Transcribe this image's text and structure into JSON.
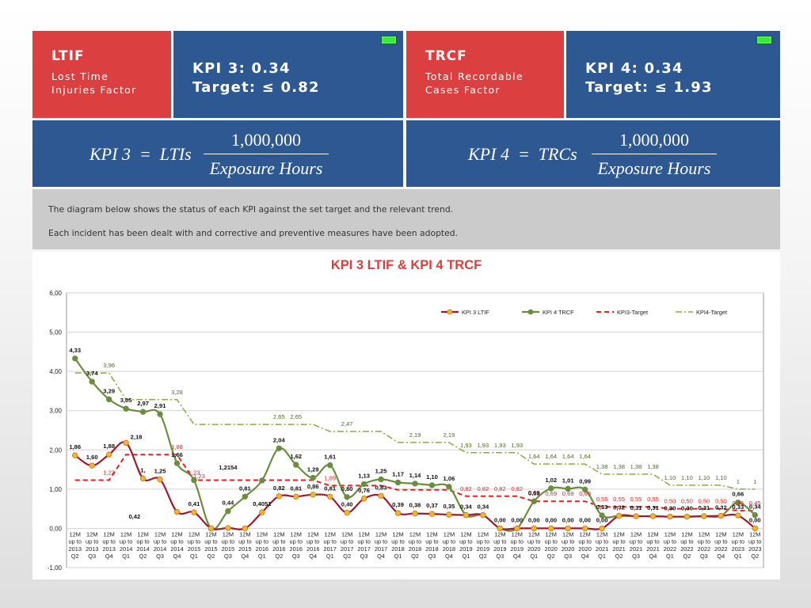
{
  "header": {
    "left": {
      "code": "LTIF",
      "name": "Lost Time\nInjuries Factor",
      "kpi_line": "KPI 3: 0.34",
      "target_line": "Target: ≤ 0.82",
      "status_color": "#33ee33"
    },
    "right": {
      "code": "TRCF",
      "name": "Total Recordable\nCases Factor",
      "kpi_line": "KPI 4: 0.34",
      "target_line": "Target: ≤ 1.93",
      "status_color": "#33ee33"
    }
  },
  "formulas": {
    "left": {
      "lhs": "KPI 3  =  LTIs",
      "numerator": "1,000,000",
      "denominator": "Exposure Hours"
    },
    "right": {
      "lhs": "KPI 4  =  TRCs",
      "numerator": "1,000,000",
      "denominator": "Exposure Hours"
    }
  },
  "description": {
    "line1": "The diagram below shows the status of each KPI against the set target and the relevant trend.",
    "line2": "Each incident has been dealt with and corrective and preventive measures have been adopted."
  },
  "colors": {
    "red": "#dc3f3f",
    "blue": "#2d5891",
    "gray": "#cbcbcb",
    "ltif_line": "#a3192b",
    "ltif_marker": "#f5b335",
    "trcf_line": "#6b8e3e",
    "target3": "#ee1c1c",
    "target4": "#8aac3c"
  },
  "chart_data": {
    "type": "line",
    "title": "KPI 3 LTIF & KPI 4 TRCF",
    "ylim": [
      -1,
      6
    ],
    "yticks": [
      "-1,00",
      "0,00",
      "1,00",
      "2,00",
      "3,00",
      "4,00",
      "5,00",
      "6,00"
    ],
    "grid": true,
    "legend_position": "top-right",
    "categories": [
      "12M up to 2013 Q2",
      "12M up to 2013 Q3",
      "12M up to 2013 Q4",
      "12M up to 2014 Q1",
      "12M up to 2014 Q2",
      "12M up to 2014 Q3",
      "12M up to 2014 Q4",
      "12M up to 2015 Q1",
      "12M up to 2015 Q2",
      "12M up to 2015 Q3",
      "12M up to 2015 Q4",
      "12M up to 2016 Q1",
      "12M up to 2016 Q2",
      "12M up to 2016 Q3",
      "12M up to 2016 Q4",
      "12M up to 2017 Q1",
      "12M up to 2017 Q2",
      "12M up to 2017 Q3",
      "12M up to 2017 Q4",
      "12M up to 2018 Q1",
      "12M up to 2018 Q2",
      "12M up to 2018 Q3",
      "12M up to 2018 Q4",
      "12M up to 2019 Q1",
      "12M up to 2019 Q2",
      "12M up to 2019 Q3",
      "12M up to 2019 Q4",
      "12M up to 2020 Q1",
      "12M up to 2020 Q2",
      "12M up to 2020 Q3",
      "12M up to 2020 Q4",
      "12M up to 2021 Q1",
      "12M up to 2021 Q2",
      "12M up to 2021 Q3",
      "12M up to 2021 Q4",
      "12M up to 2022 Q1",
      "12M up to 2022 Q2",
      "12M up to 2022 Q3",
      "12M up to 2022 Q4",
      "12M up to 2023 Q1",
      "12M up to 2023 Q2"
    ],
    "series": [
      {
        "name": "KPI 3 LTIF",
        "values": [
          1.86,
          1.6,
          1.88,
          2.18,
          1.27,
          1.25,
          0.42,
          0.41,
          0.0,
          0.01,
          0.0,
          0.41,
          0.82,
          0.81,
          0.86,
          0.81,
          0.4,
          0.76,
          0.83,
          0.39,
          0.38,
          0.37,
          0.35,
          0.34,
          0.34,
          0.0,
          0.0,
          0.0,
          0.0,
          0.0,
          0.0,
          0.0,
          0.32,
          0.31,
          0.31,
          0.3,
          0.3,
          0.31,
          0.32,
          0.33,
          0.0
        ],
        "labels": [
          "1,86",
          "1,60",
          "1,88",
          "",
          "1,",
          "1,25",
          "",
          "0,41",
          "",
          "",
          "",
          "0,4051",
          "0,82",
          "0,81",
          "0,86",
          "0,81",
          "0,40",
          "0,76",
          "0,83",
          "0,39",
          "0,38",
          "0,37",
          "0,35",
          "0,34",
          "0,34",
          "0,00",
          "0,00",
          "0,00",
          "0,00",
          "0,00",
          "0,00",
          "0,00",
          "0,32",
          "0,31",
          "0,31",
          "0,30",
          "0,30",
          "0,31",
          "0,32",
          "0,33",
          "0,00"
        ]
      },
      {
        "name": "KPI 4 TRCF",
        "values": [
          4.33,
          3.74,
          3.29,
          3.05,
          2.97,
          2.91,
          1.66,
          1.23,
          0.0,
          0.44,
          0.81,
          1.22,
          2.04,
          1.62,
          1.29,
          1.61,
          0.8,
          1.13,
          1.25,
          1.17,
          1.14,
          1.1,
          1.06,
          0.34,
          0.34,
          0.0,
          0.0,
          0.69,
          1.02,
          1.01,
          0.99,
          0.33,
          0.32,
          0.31,
          0.31,
          0.3,
          0.3,
          0.31,
          0.32,
          0.66,
          0.34
        ],
        "labels": [
          "4,33",
          "3,74",
          "3,29",
          "3,05",
          "2,97",
          "2,91",
          "1,66",
          "",
          "",
          "0,44",
          "0,81",
          "",
          "2,04",
          "1,62",
          "1,29",
          "1,61",
          "0,80",
          "1,13",
          "1,25",
          "1,17",
          "1,14",
          "1,10",
          "1,06",
          "",
          "",
          "",
          "",
          "0,69",
          "1,02",
          "1,01",
          "0,99",
          "0,33",
          "",
          "",
          "",
          "",
          "",
          "",
          "",
          "0,66",
          "0,34"
        ]
      },
      {
        "name": "KPI3-Target",
        "values": [
          1.23,
          1.23,
          1.23,
          1.88,
          1.88,
          1.88,
          1.88,
          1.23,
          1.23,
          1.23,
          1.23,
          1.23,
          1.23,
          1.23,
          1.23,
          1.09,
          1.09,
          1.09,
          1.09,
          0.98,
          0.98,
          0.98,
          0.98,
          0.82,
          0.82,
          0.82,
          0.82,
          0.69,
          0.69,
          0.69,
          0.69,
          0.55,
          0.55,
          0.55,
          0.55,
          0.5,
          0.5,
          0.5,
          0.5,
          0.45,
          0.45
        ],
        "labels": [
          "",
          "",
          "1,23",
          "",
          "",
          "",
          "1,88",
          "1,23",
          "",
          "",
          "",
          "",
          "",
          "",
          "",
          "1,09",
          "",
          "",
          "",
          "",
          "",
          "",
          "",
          "0,82",
          "0,82",
          "0,82",
          "0,82",
          "0,69",
          "0,69",
          "0,69",
          "0,69",
          "0,55",
          "0,55",
          "0,55",
          "0,55",
          "0,50",
          "0,50",
          "0,50",
          "0,50",
          "0,45",
          "0,45"
        ]
      },
      {
        "name": "KPI4-Target",
        "values": [
          3.96,
          3.96,
          3.96,
          3.28,
          3.28,
          3.28,
          3.28,
          2.65,
          2.65,
          2.65,
          2.65,
          2.65,
          2.65,
          2.65,
          2.65,
          2.47,
          2.47,
          2.47,
          2.47,
          2.19,
          2.19,
          2.19,
          2.19,
          1.93,
          1.93,
          1.93,
          1.93,
          1.64,
          1.64,
          1.64,
          1.64,
          1.38,
          1.38,
          1.38,
          1.38,
          1.1,
          1.1,
          1.1,
          1.1,
          1.0,
          1.0
        ],
        "labels": [
          "",
          "",
          "3,96",
          "",
          "",
          "",
          "3,28",
          "",
          "",
          "",
          "",
          "",
          "2,65",
          "2,65",
          "",
          "",
          "2,47",
          "",
          "",
          "",
          "2,19",
          "",
          "2,19",
          "1,93",
          "1,93",
          "1,93",
          "1,93",
          "1,64",
          "1,64",
          "1,64",
          "1,64",
          "1,38",
          "1,38",
          "1,38",
          "1,38",
          "1,10",
          "1,10",
          "1,10",
          "1,10",
          "1",
          "1"
        ]
      }
    ],
    "annotations": [
      "1,2154",
      "0,42",
      "2,18",
      "1,23"
    ]
  }
}
